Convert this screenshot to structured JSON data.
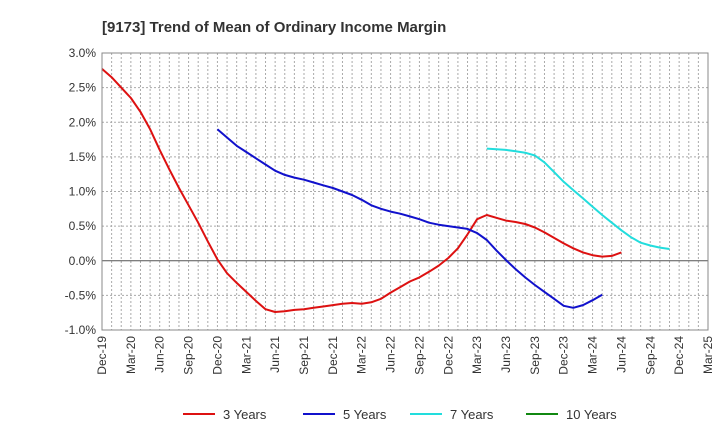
{
  "chart_data": {
    "type": "line",
    "title": "[9173]  Trend of Mean of Ordinary Income Margin",
    "xlabel": "",
    "ylabel": "",
    "x_ticks": [
      "Dec-19",
      "Mar-20",
      "Jun-20",
      "Sep-20",
      "Dec-20",
      "Mar-21",
      "Jun-21",
      "Sep-21",
      "Dec-21",
      "Mar-22",
      "Jun-22",
      "Sep-22",
      "Dec-22",
      "Mar-23",
      "Jun-23",
      "Sep-23",
      "Dec-23",
      "Mar-24",
      "Jun-24",
      "Sep-24",
      "Dec-24",
      "Mar-25"
    ],
    "y_ticks": [
      "3.0%",
      "2.5%",
      "2.0%",
      "1.5%",
      "1.0%",
      "0.5%",
      "0.0%",
      "-0.5%",
      "-1.0%"
    ],
    "ylim": [
      -1.0,
      3.0
    ],
    "grid": true,
    "legend_position": "bottom",
    "series": [
      {
        "name": "3 Years",
        "color": "#dd1111",
        "start_index": 0,
        "values": [
          2.77,
          2.65,
          2.5,
          2.35,
          2.15,
          1.9,
          1.6,
          1.32,
          1.05,
          0.8,
          0.55,
          0.28,
          0.02,
          -0.18,
          -0.32,
          -0.45,
          -0.58,
          -0.7,
          -0.74,
          -0.73,
          -0.71,
          -0.7,
          -0.68,
          -0.66,
          -0.64,
          -0.62,
          -0.61,
          -0.62,
          -0.6,
          -0.55,
          -0.46,
          -0.38,
          -0.3,
          -0.24,
          -0.16,
          -0.07,
          0.04,
          0.18,
          0.38,
          0.6,
          0.66,
          0.62,
          0.58,
          0.56,
          0.53,
          0.48,
          0.41,
          0.33,
          0.25,
          0.18,
          0.12,
          0.08,
          0.06,
          0.07,
          0.12
        ]
      },
      {
        "name": "5 Years",
        "color": "#1111cc",
        "start_index": 12,
        "values": [
          1.9,
          1.78,
          1.66,
          1.57,
          1.48,
          1.39,
          1.3,
          1.24,
          1.2,
          1.17,
          1.13,
          1.09,
          1.05,
          1.0,
          0.95,
          0.88,
          0.8,
          0.75,
          0.71,
          0.68,
          0.64,
          0.6,
          0.55,
          0.52,
          0.5,
          0.48,
          0.46,
          0.4,
          0.3,
          0.15,
          0.01,
          -0.12,
          -0.24,
          -0.35,
          -0.45,
          -0.55,
          -0.65,
          -0.68,
          -0.64,
          -0.57,
          -0.49
        ]
      },
      {
        "name": "7 Years",
        "color": "#22dddd",
        "start_index": 40,
        "values": [
          1.62,
          1.61,
          1.6,
          1.58,
          1.56,
          1.52,
          1.42,
          1.28,
          1.14,
          1.02,
          0.9,
          0.78,
          0.66,
          0.55,
          0.44,
          0.34,
          0.26,
          0.22,
          0.19,
          0.17
        ]
      },
      {
        "name": "10 Years",
        "color": "#118811",
        "start_index": 0,
        "values": []
      }
    ]
  }
}
